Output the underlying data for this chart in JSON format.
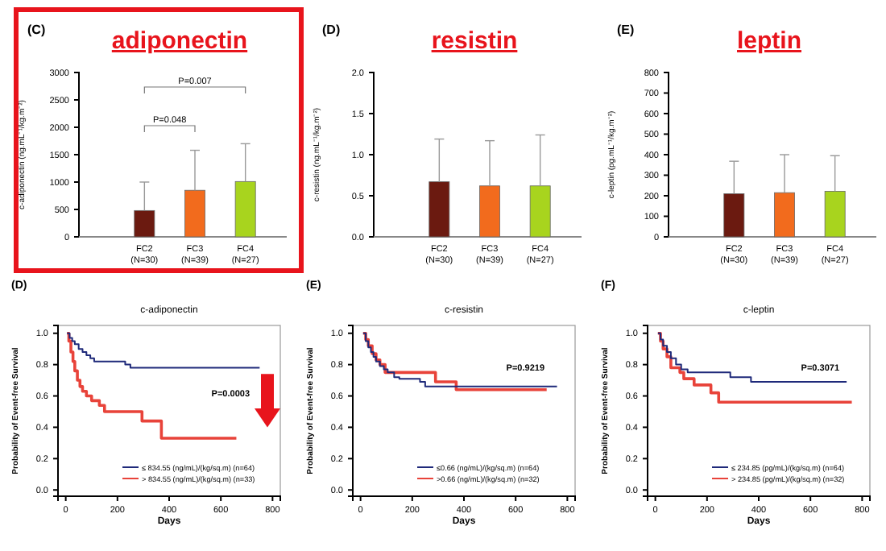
{
  "chart_data": [
    {
      "type": "bar",
      "title": "adiponectin",
      "ylabel": "c-adiponectin (ng.mL⁻¹/kg.m⁻²)",
      "categories": [
        "FC2 (N=30)",
        "FC3 (N=39)",
        "FC4 (N=27)"
      ],
      "values": [
        480,
        850,
        1010
      ],
      "colors": [
        "#6b1a10",
        "#f26b1d",
        "#a8d41e"
      ],
      "errors": [
        [
          480,
          1000
        ],
        [
          850,
          1580
        ],
        [
          1010,
          1700
        ]
      ],
      "ylim": [
        0,
        3000
      ],
      "yticks": [
        0,
        500,
        1000,
        1500,
        2000,
        2500,
        3000
      ],
      "annotations": [
        "(C)",
        "P=0.048",
        "P=0.007"
      ]
    },
    {
      "type": "bar",
      "title": "resistin",
      "ylabel": "c-resistin (ng.mL⁻¹/kg.m⁻²)",
      "categories": [
        "FC2 (N=30)",
        "FC3 (N=39)",
        "FC4 (N=27)"
      ],
      "values": [
        0.67,
        0.62,
        0.62
      ],
      "colors": [
        "#6b1a10",
        "#f26b1d",
        "#a8d41e"
      ],
      "errors": [
        [
          0.67,
          1.19
        ],
        [
          0.62,
          1.17
        ],
        [
          0.62,
          1.24
        ]
      ],
      "ylim": [
        0,
        2
      ],
      "yticks": [
        {
          "value": 0,
          "label": "0.0"
        },
        0.5,
        {
          "value": 1,
          "label": "1.0"
        },
        1.5,
        {
          "value": 2,
          "label": "2.0"
        }
      ],
      "annotations": [
        "(D)"
      ]
    },
    {
      "type": "bar",
      "title": "leptin",
      "ylabel": "c-leptin (pg.mL⁻¹/kg.m⁻²)",
      "categories": [
        "FC2 (N=30)",
        "FC3 (N=39)",
        "FC4 (N=27)"
      ],
      "values": [
        210,
        215,
        222
      ],
      "colors": [
        "#6b1a10",
        "#f26b1d",
        "#a8d41e"
      ],
      "errors": [
        [
          210,
          368
        ],
        [
          215,
          400
        ],
        [
          222,
          395
        ]
      ],
      "ylim": [
        0,
        800
      ],
      "yticks": [
        0,
        100,
        200,
        300,
        400,
        500,
        600,
        700,
        800
      ],
      "annotations": [
        "(E)"
      ]
    },
    {
      "type": "step",
      "title": "c-adiponectin",
      "xlabel": "Days",
      "ylabel": "Probability of Event-free Survival",
      "xlim": [
        -30,
        830
      ],
      "xticks": [
        0,
        200,
        400,
        600,
        800
      ],
      "ylim": [
        -0.04,
        1.05
      ],
      "yticks": [
        {
          "value": 0,
          "label": "0.0"
        },
        0.2,
        0.4,
        0.6,
        0.8,
        {
          "value": 1,
          "label": "1.0"
        }
      ],
      "legend": "bottom right",
      "annotations": [
        "(D)",
        "P=0.0003"
      ],
      "series": [
        {
          "name": "≤ 834.55 (ng/mL)/(kg/sq.m) (n=64)",
          "color": "#1f2a7a",
          "x": [
            5,
            15,
            25,
            35,
            50,
            65,
            80,
            95,
            110,
            230,
            250,
            750
          ],
          "values": [
            1,
            0.97,
            0.95,
            0.93,
            0.9,
            0.88,
            0.86,
            0.84,
            0.82,
            0.8,
            0.78,
            0.78
          ]
        },
        {
          "name": "> 834.55 (ng/mL)/(kg/sq.m) (n=33)",
          "color": "#e8433a",
          "x": [
            5,
            12,
            20,
            28,
            35,
            45,
            55,
            65,
            80,
            100,
            130,
            150,
            295,
            370,
            660
          ],
          "values": [
            1,
            0.95,
            0.88,
            0.82,
            0.76,
            0.7,
            0.66,
            0.63,
            0.6,
            0.57,
            0.54,
            0.5,
            0.44,
            0.33,
            0.33
          ]
        }
      ]
    },
    {
      "type": "step",
      "title": "c-resistin",
      "xlabel": "Days",
      "ylabel": "Probability of Event-free Survival",
      "xlim": [
        -30,
        830
      ],
      "xticks": [
        0,
        200,
        400,
        600,
        800
      ],
      "ylim": [
        -0.04,
        1.05
      ],
      "yticks": [
        {
          "value": 0,
          "label": "0.0"
        },
        0.2,
        0.4,
        0.6,
        0.8,
        {
          "value": 1,
          "label": "1.0"
        }
      ],
      "legend": "bottom right",
      "annotations": [
        "(E)",
        "P=0.9219"
      ],
      "series": [
        {
          "name": "≤0.66 (ng/mL)/(kg/sq.m) (n=64)",
          "color": "#1f2a7a",
          "x": [
            10,
            20,
            30,
            40,
            50,
            60,
            75,
            90,
            105,
            130,
            150,
            230,
            250,
            760
          ],
          "values": [
            1,
            0.95,
            0.91,
            0.88,
            0.85,
            0.82,
            0.79,
            0.77,
            0.75,
            0.72,
            0.71,
            0.69,
            0.66,
            0.66
          ]
        },
        {
          "name": ">0.66 (ng/mL)/(kg/sq.m) (n=32)",
          "color": "#e8433a",
          "x": [
            10,
            20,
            30,
            45,
            60,
            75,
            95,
            290,
            370,
            720
          ],
          "values": [
            1,
            0.96,
            0.92,
            0.87,
            0.83,
            0.8,
            0.75,
            0.69,
            0.64,
            0.64
          ]
        }
      ]
    },
    {
      "type": "step",
      "title": "c-leptin",
      "xlabel": "Days",
      "ylabel": "Probability of Event-free Survival",
      "xlim": [
        -30,
        830
      ],
      "xticks": [
        0,
        200,
        400,
        600,
        800
      ],
      "ylim": [
        -0.04,
        1.05
      ],
      "yticks": [
        {
          "value": 0,
          "label": "0.0"
        },
        0.2,
        0.4,
        0.6,
        0.8,
        {
          "value": 1,
          "label": "1.0"
        }
      ],
      "legend": "bottom right",
      "annotations": [
        "(F)",
        "P=0.3071"
      ],
      "series": [
        {
          "name": "≤ 234.85 (pg/mL)/(kg/sq.m) (n=64)",
          "color": "#1f2a7a",
          "x": [
            10,
            20,
            30,
            45,
            60,
            80,
            100,
            125,
            290,
            370,
            740
          ],
          "values": [
            1,
            0.96,
            0.92,
            0.88,
            0.84,
            0.8,
            0.77,
            0.75,
            0.72,
            0.69,
            0.69
          ]
        },
        {
          "name": "> 234.85 (pg/mL)/(kg/sq.m) (n=32)",
          "color": "#e8433a",
          "x": [
            10,
            20,
            30,
            45,
            60,
            95,
            110,
            150,
            215,
            245,
            760
          ],
          "values": [
            1,
            0.95,
            0.9,
            0.85,
            0.78,
            0.75,
            0.71,
            0.67,
            0.62,
            0.56,
            0.56
          ]
        }
      ]
    }
  ]
}
